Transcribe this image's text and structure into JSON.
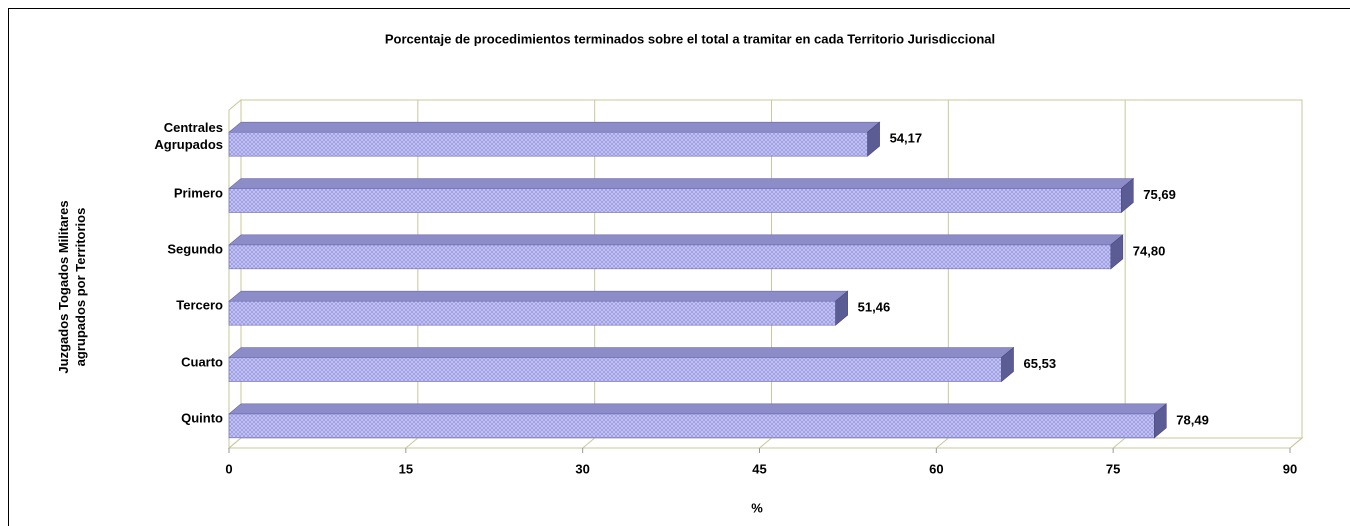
{
  "chart_data": {
    "type": "bar",
    "orientation": "horizontal",
    "title": "Porcentaje de procedimientos terminados sobre el total  a tramitar en cada Territorio Jurisdiccional",
    "xlabel": "%",
    "ylabel": "Juzgados Togados Militares agrupados por Territorios",
    "categories": [
      "Centrales Agrupados",
      "Primero",
      "Segundo",
      "Tercero",
      "Cuarto",
      "Quinto"
    ],
    "values": [
      54.17,
      75.69,
      74.8,
      51.46,
      65.53,
      78.49
    ],
    "value_labels": [
      "54,17",
      "75,69",
      "74,80",
      "51,46",
      "65,53",
      "78,49"
    ],
    "color": "#b4b4f0",
    "xlim": [
      0,
      90
    ],
    "xticks": [
      0,
      15,
      30,
      45,
      60,
      75,
      90
    ],
    "grid": true
  }
}
